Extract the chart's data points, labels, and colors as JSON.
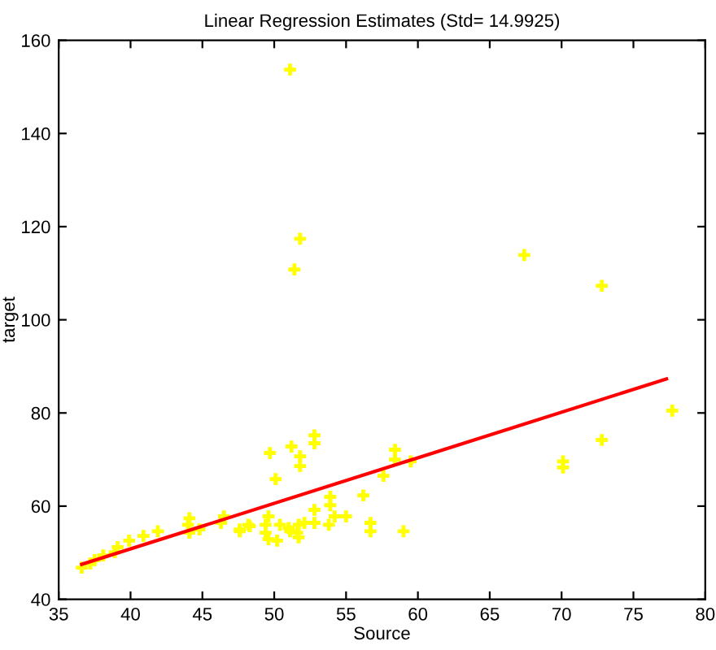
{
  "chart_data": {
    "type": "scatter",
    "title": "Linear Regression Estimates (Std= 14.9925)",
    "xlabel": "Source",
    "ylabel": "target",
    "xlim": [
      35,
      80
    ],
    "ylim": [
      40,
      160
    ],
    "xticks": [
      35,
      40,
      45,
      50,
      55,
      60,
      65,
      70,
      75,
      80
    ],
    "yticks": [
      40,
      60,
      80,
      100,
      120,
      140,
      160
    ],
    "grid": false,
    "legend": false,
    "series": [
      {
        "color": "#ffff00",
        "marker": "cross",
        "x": [
          36.6,
          37.2,
          37.5,
          38.1,
          38.9,
          39.1,
          39.9,
          40.9,
          41.9,
          44.0,
          44.1,
          44.1,
          44.8,
          46.3,
          46.5,
          47.6,
          48.3,
          49.7,
          51.2,
          51.8,
          51.8,
          52.8,
          52.8,
          50.1,
          58.4,
          58.4,
          57.6,
          59.5,
          56.2,
          53.9,
          53.9,
          52.8,
          55.0,
          54.2,
          53.8,
          52.8,
          51.7,
          51.0,
          50.4,
          49.6,
          49.4,
          49.6,
          50.2,
          51.6,
          51.7,
          56.7,
          56.7,
          59.0,
          47.6,
          48.2,
          49.4,
          51.1,
          52.1,
          51.1,
          51.8,
          51.4,
          67.4,
          72.8,
          77.7,
          72.8,
          70.1,
          70.1
        ],
        "values": [
          46.8,
          47.7,
          48.4,
          49.4,
          50.1,
          51.2,
          52.6,
          53.6,
          54.6,
          56.0,
          57.4,
          54.3,
          55.0,
          56.4,
          57.8,
          55.0,
          55.7,
          71.4,
          72.8,
          70.7,
          68.6,
          75.2,
          73.5,
          65.8,
          72.1,
          70.0,
          66.5,
          69.6,
          62.3,
          62.0,
          60.2,
          59.2,
          57.8,
          57.8,
          56.0,
          56.4,
          56.0,
          55.3,
          56.0,
          57.8,
          56.0,
          52.9,
          52.6,
          54.3,
          53.3,
          56.4,
          54.6,
          54.6,
          54.6,
          56.0,
          54.3,
          54.6,
          56.4,
          153.7,
          117.4,
          110.8,
          113.9,
          107.3,
          80.5,
          74.2,
          69.6,
          68.3
        ]
      },
      {
        "type": "line",
        "color": "#ff0000",
        "marker": "none",
        "line_style": "solid",
        "x": [
          36.6,
          77.3
        ],
        "values": [
          47.5,
          87.3
        ]
      }
    ]
  }
}
